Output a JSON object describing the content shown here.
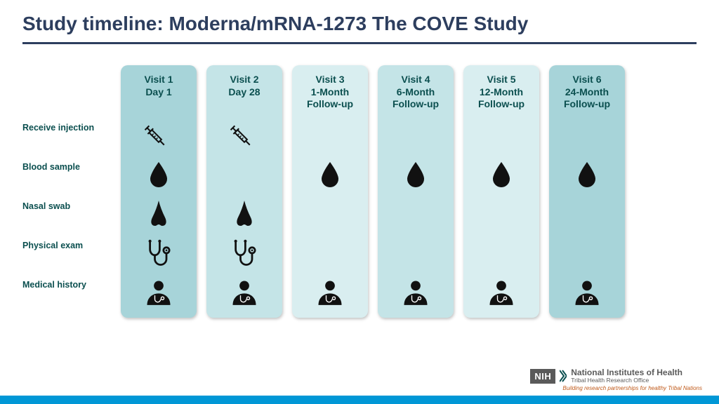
{
  "title": "Study timeline: Moderna/mRNA-1273 The COVE Study",
  "title_color": "#2d3e5e",
  "hr_color": "#2d3e5e",
  "label_color": "#0b4f4f",
  "visit_text_color": "#0b4f4f",
  "footer_bar_color": "#0097d6",
  "row_labels": [
    "Receive injection",
    "Blood sample",
    "Nasal swab",
    "Physical exam",
    "Medical history"
  ],
  "visits": [
    {
      "line1": "Visit 1",
      "line2": "Day 1",
      "line3": "",
      "bg": "#a7d4d9",
      "icons": [
        "syringe",
        "drop",
        "nose",
        "stethoscope",
        "doctor"
      ]
    },
    {
      "line1": "Visit 2",
      "line2": "Day 28",
      "line3": "",
      "bg": "#c4e4e7",
      "icons": [
        "syringe",
        "",
        "nose",
        "stethoscope",
        "doctor"
      ]
    },
    {
      "line1": "Visit 3",
      "line2": "1-Month",
      "line3": "Follow-up",
      "bg": "#d9eef0",
      "icons": [
        "",
        "drop",
        "",
        "",
        "doctor"
      ]
    },
    {
      "line1": "Visit 4",
      "line2": "6-Month",
      "line3": "Follow-up",
      "bg": "#c4e4e7",
      "icons": [
        "",
        "drop",
        "",
        "",
        "doctor"
      ]
    },
    {
      "line1": "Visit 5",
      "line2": "12-Month",
      "line3": "Follow-up",
      "bg": "#d9eef0",
      "icons": [
        "",
        "drop",
        "",
        "",
        "doctor"
      ]
    },
    {
      "line1": "Visit 6",
      "line2": "24-Month",
      "line3": "Follow-up",
      "bg": "#a7d4d9",
      "icons": [
        "",
        "drop",
        "",
        "",
        "doctor"
      ]
    }
  ],
  "logo": {
    "badge": "NIH",
    "main": "National Institutes of Health",
    "sub": "Tribal Health Research Office",
    "tagline": "Building research partnerships for healthy Tribal Nations"
  }
}
